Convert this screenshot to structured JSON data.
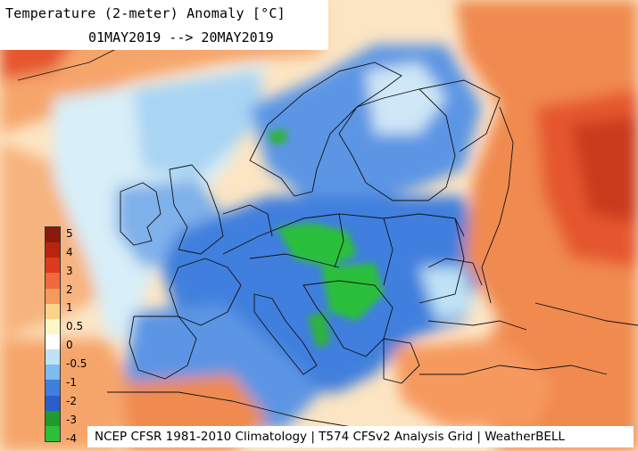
{
  "title": {
    "line1": "Temperature (2-meter) Anomaly  [°C]",
    "line2": "01MAY2019 --> 20MAY2019"
  },
  "footer": "NCEP CFSR 1981-2010 Climatology | T574 CFSv2 Analysis Grid | WeatherBELL",
  "legend": {
    "labels": [
      "5",
      "4",
      "3",
      "2",
      "1",
      "0.5",
      "0",
      "-0.5",
      "-1",
      "-2",
      "-3",
      "-4"
    ],
    "colors": [
      "#8b1a0e",
      "#b8250f",
      "#dc3b1e",
      "#ef6a3c",
      "#f6995e",
      "#fcd38c",
      "#fdf6c7",
      "#ffffff",
      "#bfe3f5",
      "#7fbaf0",
      "#3f7fdd",
      "#2a5fc9",
      "#1e9b2c",
      "#2bbf3a"
    ]
  },
  "map_colors": {
    "ocean_neutral": "#cfeaf6",
    "cold_strong": "#2f6fd6",
    "cold_mid": "#5b95e4",
    "cold_light": "#98c4ef",
    "very_cold": "#2db23b",
    "warm_light": "#fbd9a9",
    "warm_mid": "#f4a06a",
    "warm_strong": "#e5562f",
    "warm_extreme": "#c93a1c",
    "border": "#111111"
  }
}
